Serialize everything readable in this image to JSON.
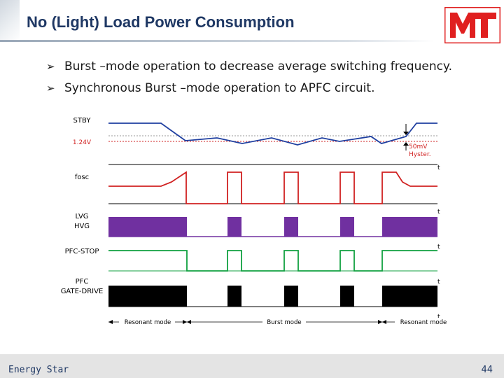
{
  "slide": {
    "title": "No (Light) Load Power Consumption",
    "bullets": [
      "Burst –mode operation to decrease average switching frequency.",
      "Synchronous Burst –mode operation to APFC circuit."
    ],
    "footer_left": "Energy Star",
    "page_number": "44"
  },
  "logo": {
    "brand_color": "#e02020",
    "icon": "company-logo-mt"
  },
  "diagram": {
    "signals": {
      "stby": "STBY",
      "threshold": "1.24V",
      "fosc": "fosc",
      "lvg": "LVG",
      "hvg": "HVG",
      "pfc_stop": "PFC-STOP",
      "pfc": "PFC",
      "gate_drive": "GATE-DRIVE"
    },
    "annotations": {
      "hyst_value": "50mV",
      "hyst_label": "Hyster.",
      "time_axis": "t"
    },
    "modes": {
      "left": "Resonant mode",
      "center": "Burst mode",
      "right": "Resonant mode"
    },
    "colors": {
      "stby": "#1f3fa0",
      "threshold": "#d02020",
      "fosc": "#d02020",
      "lvg_hvg": "#7030a0",
      "pfc_stop": "#10a040",
      "gate": "#000000"
    }
  }
}
